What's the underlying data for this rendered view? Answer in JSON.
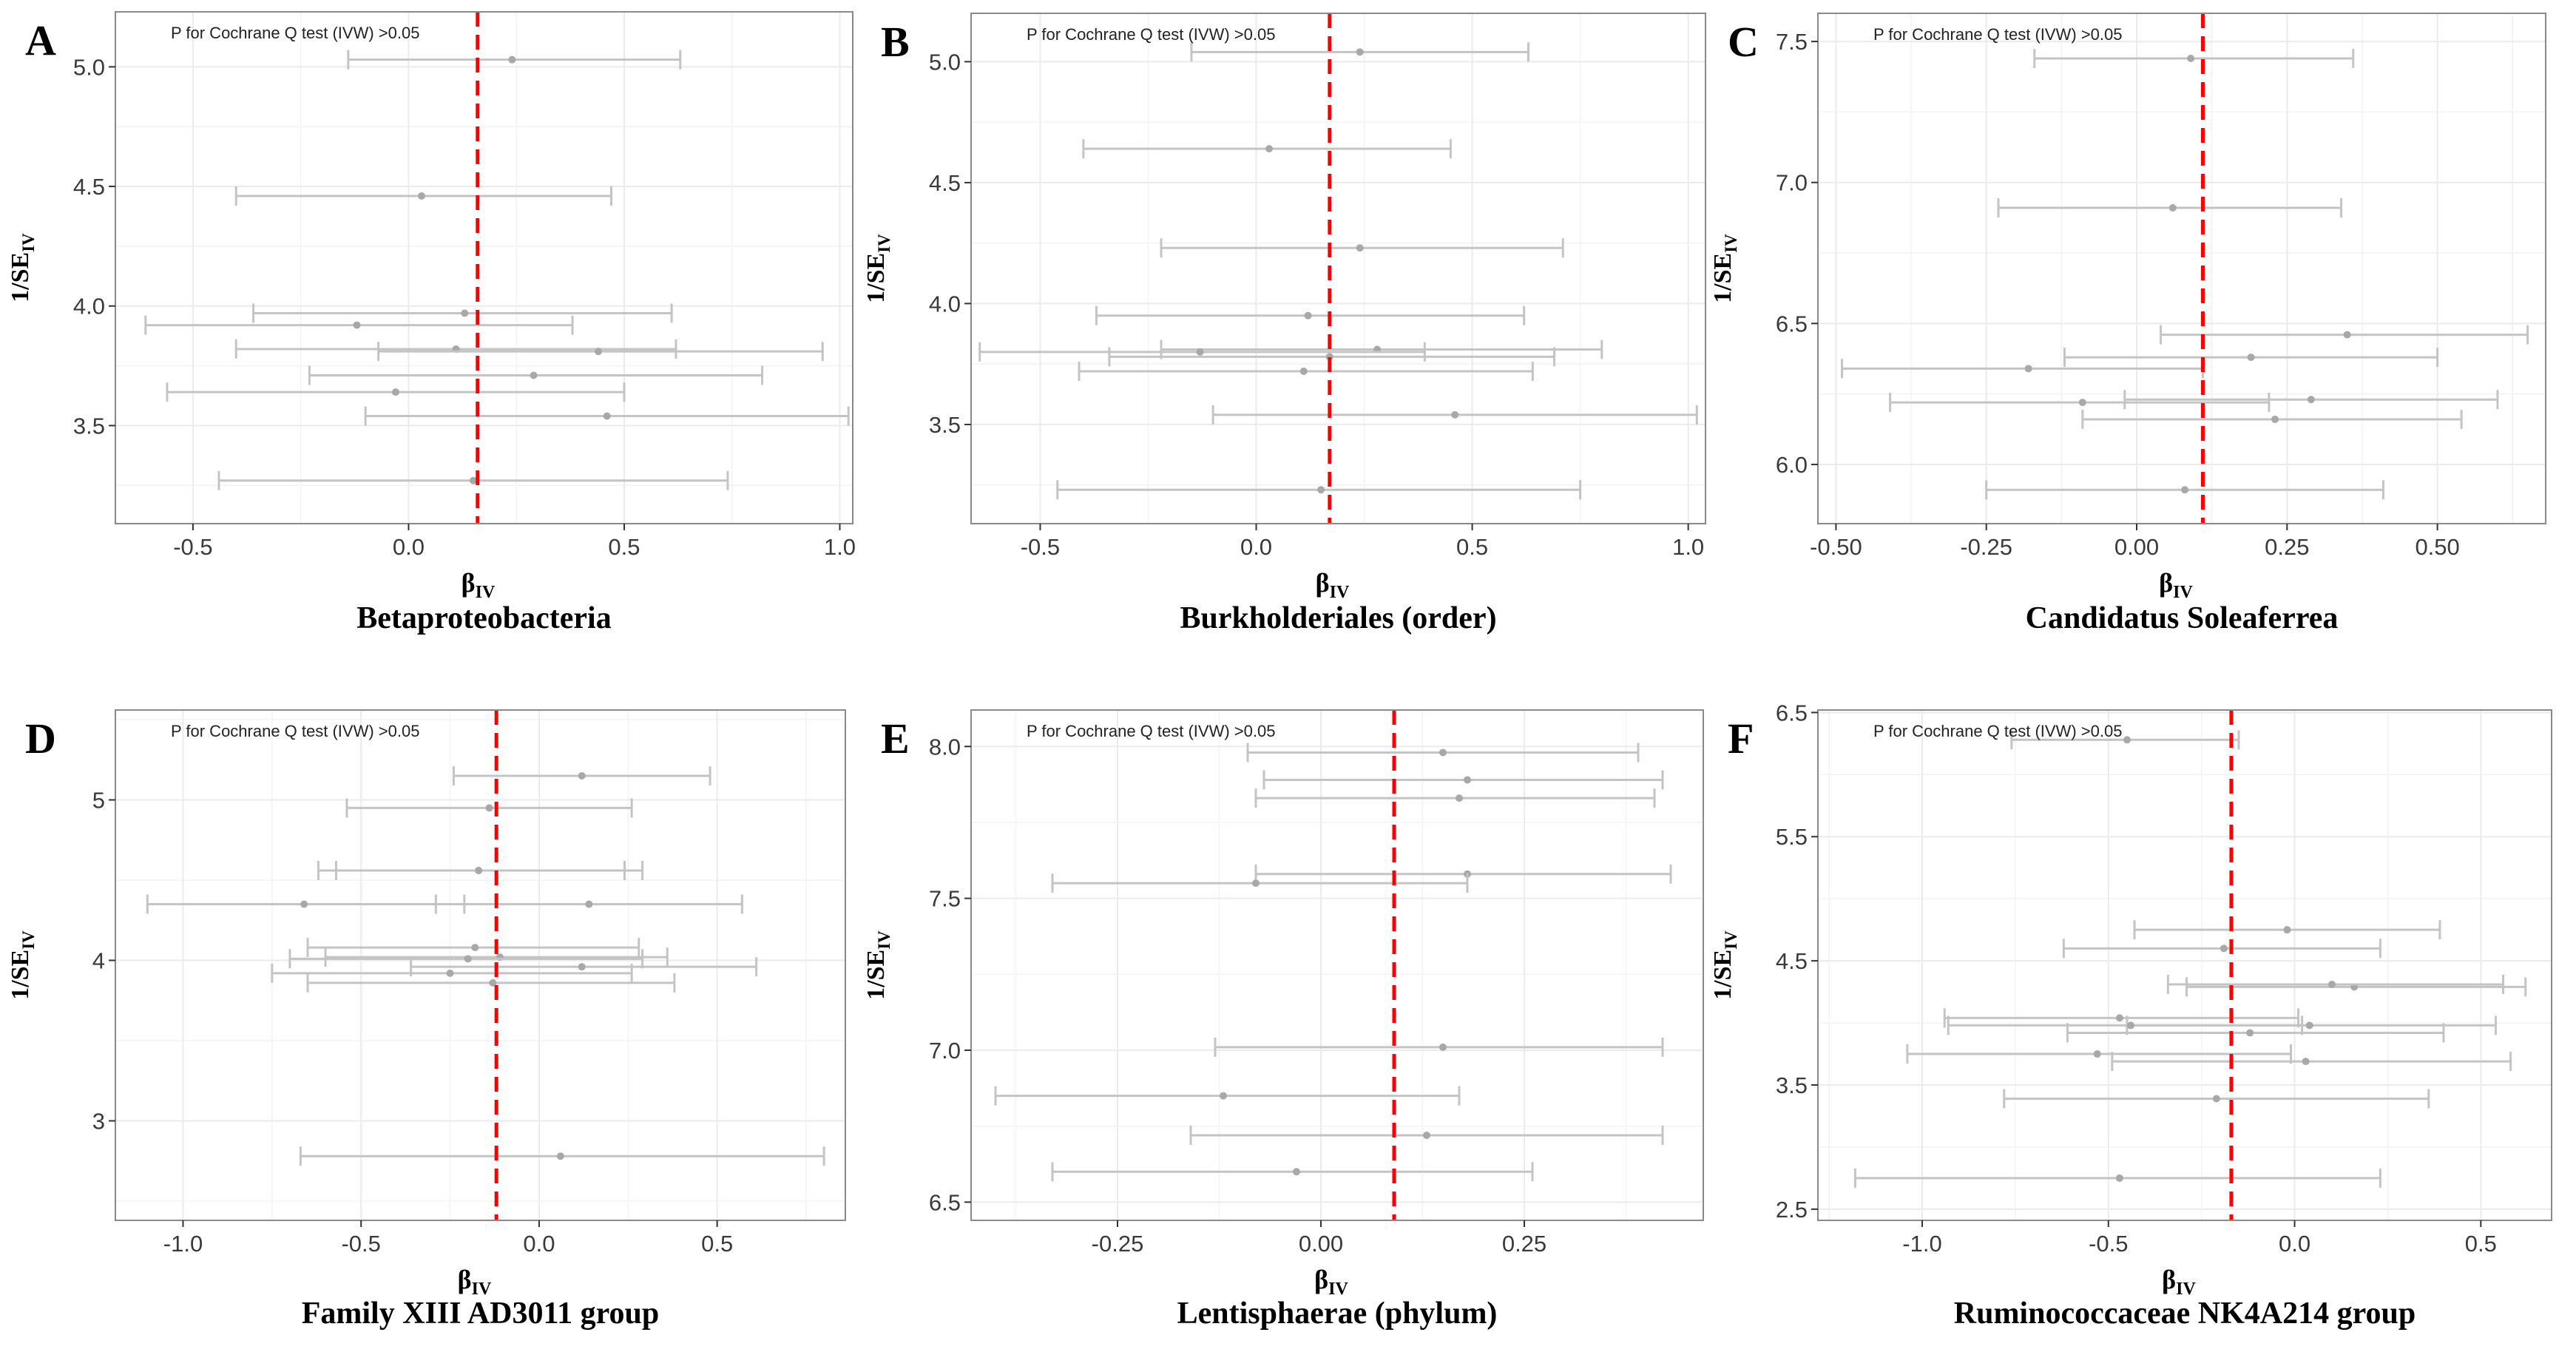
{
  "figure": {
    "colors": {
      "panel_bg": "#ffffff",
      "panel_border": "#8a8a8a",
      "grid": "#ebebeb",
      "errorbar": "#c4c4c4",
      "point": "#a8a8a8",
      "ref_line": "#ff0000",
      "axis_text": "#3a3a3a",
      "title_text": "#000000"
    }
  },
  "chart_data": [
    {
      "type": "scatter",
      "panel_letter": "A",
      "title": "Betaproteobacteria",
      "annotation": "P for Cochrane Q test (IVW) >0.05",
      "xlabel": "β",
      "xlabel_sub": "IV",
      "ylabel": "1/SE",
      "ylabel_sub": "IV",
      "xlim": [
        -0.68,
        1.03
      ],
      "ylim": [
        3.09,
        5.23
      ],
      "xticks": [
        -0.5,
        0.0,
        0.5,
        1.0
      ],
      "xtick_labels": [
        "-0.5",
        "0.0",
        "0.5",
        "1.0"
      ],
      "yticks": [
        3.5,
        4.0,
        4.5,
        5.0
      ],
      "ytick_labels": [
        "3.5",
        "4.0",
        "4.5",
        "5.0"
      ],
      "ref_x": 0.16,
      "points": [
        {
          "beta": 0.24,
          "lo": -0.14,
          "hi": 0.63,
          "y": 5.03
        },
        {
          "beta": 0.03,
          "lo": -0.4,
          "hi": 0.47,
          "y": 4.46
        },
        {
          "beta": 0.13,
          "lo": -0.36,
          "hi": 0.61,
          "y": 3.97
        },
        {
          "beta": -0.12,
          "lo": -0.61,
          "hi": 0.38,
          "y": 3.92
        },
        {
          "beta": 0.11,
          "lo": -0.4,
          "hi": 0.62,
          "y": 3.82
        },
        {
          "beta": 0.44,
          "lo": -0.07,
          "hi": 0.96,
          "y": 3.81
        },
        {
          "beta": 0.29,
          "lo": -0.23,
          "hi": 0.82,
          "y": 3.71
        },
        {
          "beta": -0.03,
          "lo": -0.56,
          "hi": 0.5,
          "y": 3.64
        },
        {
          "beta": 0.46,
          "lo": -0.1,
          "hi": 1.02,
          "y": 3.54
        },
        {
          "beta": 0.15,
          "lo": -0.44,
          "hi": 0.74,
          "y": 3.27
        }
      ]
    },
    {
      "type": "scatter",
      "panel_letter": "B",
      "title": "Burkholderiales (order)",
      "annotation": "P for Cochrane Q test (IVW) >0.05",
      "xlabel": "β",
      "xlabel_sub": "IV",
      "ylabel": "1/SE",
      "ylabel_sub": "IV",
      "xlim": [
        -0.66,
        1.04
      ],
      "ylim": [
        3.09,
        5.2
      ],
      "xticks": [
        -0.5,
        0.0,
        0.5,
        1.0
      ],
      "xtick_labels": [
        "-0.5",
        "0.0",
        "0.5",
        "1.0"
      ],
      "yticks": [
        3.5,
        4.0,
        4.5,
        5.0
      ],
      "ytick_labels": [
        "3.5",
        "4.0",
        "4.5",
        "5.0"
      ],
      "ref_x": 0.17,
      "points": [
        {
          "beta": 0.24,
          "lo": -0.15,
          "hi": 0.63,
          "y": 5.04
        },
        {
          "beta": 0.03,
          "lo": -0.4,
          "hi": 0.45,
          "y": 4.64
        },
        {
          "beta": 0.24,
          "lo": -0.22,
          "hi": 0.71,
          "y": 4.23
        },
        {
          "beta": 0.12,
          "lo": -0.37,
          "hi": 0.62,
          "y": 3.95
        },
        {
          "beta": 0.28,
          "lo": -0.22,
          "hi": 0.8,
          "y": 3.81
        },
        {
          "beta": -0.13,
          "lo": -0.64,
          "hi": 0.39,
          "y": 3.8
        },
        {
          "beta": 0.17,
          "lo": -0.34,
          "hi": 0.69,
          "y": 3.78
        },
        {
          "beta": 0.11,
          "lo": -0.41,
          "hi": 0.64,
          "y": 3.72
        },
        {
          "beta": 0.46,
          "lo": -0.1,
          "hi": 1.02,
          "y": 3.54
        },
        {
          "beta": 0.15,
          "lo": -0.46,
          "hi": 0.75,
          "y": 3.23
        }
      ]
    },
    {
      "type": "scatter",
      "panel_letter": "C",
      "title": "Candidatus Soleaferrea",
      "annotation": "P for Cochrane Q test (IVW) >0.05",
      "xlabel": "β",
      "xlabel_sub": "IV",
      "ylabel": "1/SE",
      "ylabel_sub": "IV",
      "xlim": [
        -0.53,
        0.68
      ],
      "ylim": [
        5.79,
        7.6
      ],
      "xticks": [
        -0.5,
        -0.25,
        0.0,
        0.25,
        0.5
      ],
      "xtick_labels": [
        "-0.50",
        "-0.25",
        "0.00",
        "0.25",
        "0.50"
      ],
      "yticks": [
        6.0,
        6.5,
        7.0,
        7.5
      ],
      "ytick_labels": [
        "6.0",
        "6.5",
        "7.0",
        "7.5"
      ],
      "ref_x": 0.11,
      "points": [
        {
          "beta": 0.09,
          "lo": -0.17,
          "hi": 0.36,
          "y": 7.44
        },
        {
          "beta": 0.06,
          "lo": -0.23,
          "hi": 0.34,
          "y": 6.91
        },
        {
          "beta": 0.35,
          "lo": 0.04,
          "hi": 0.65,
          "y": 6.46
        },
        {
          "beta": 0.19,
          "lo": -0.12,
          "hi": 0.5,
          "y": 6.38
        },
        {
          "beta": -0.18,
          "lo": -0.49,
          "hi": 0.11,
          "y": 6.34
        },
        {
          "beta": 0.29,
          "lo": -0.02,
          "hi": 0.6,
          "y": 6.23
        },
        {
          "beta": -0.09,
          "lo": -0.41,
          "hi": 0.22,
          "y": 6.22
        },
        {
          "beta": 0.23,
          "lo": -0.09,
          "hi": 0.54,
          "y": 6.16
        },
        {
          "beta": 0.08,
          "lo": -0.25,
          "hi": 0.41,
          "y": 5.91
        }
      ]
    },
    {
      "type": "scatter",
      "panel_letter": "D",
      "title": "Family XIII AD3011 group",
      "annotation": "P for Cochrane Q test (IVW) >0.05",
      "xlabel": "β",
      "xlabel_sub": "IV",
      "ylabel": "1/SE",
      "ylabel_sub": "IV",
      "xlim": [
        -1.19,
        0.86
      ],
      "ylim": [
        2.38,
        5.56
      ],
      "xticks": [
        -1.0,
        -0.5,
        0.0,
        0.5
      ],
      "xtick_labels": [
        "-1.0",
        "-0.5",
        "0.0",
        "0.5"
      ],
      "yticks": [
        3,
        4,
        5
      ],
      "ytick_labels": [
        "3",
        "4",
        "5"
      ],
      "ref_x": -0.12,
      "points": [
        {
          "beta": 0.12,
          "lo": -0.24,
          "hi": 0.48,
          "y": 5.15
        },
        {
          "beta": -0.14,
          "lo": -0.54,
          "hi": 0.26,
          "y": 4.95
        },
        {
          "beta": -0.17,
          "lo": -0.57,
          "hi": 0.24,
          "y": 4.56
        },
        {
          "beta": -0.17,
          "lo": -0.62,
          "hi": 0.29,
          "y": 4.56
        },
        {
          "beta": 0.14,
          "lo": -0.29,
          "hi": 0.57,
          "y": 4.35
        },
        {
          "beta": -0.66,
          "lo": -1.1,
          "hi": -0.21,
          "y": 4.35
        },
        {
          "beta": -0.18,
          "lo": -0.65,
          "hi": 0.28,
          "y": 4.08
        },
        {
          "beta": -0.11,
          "lo": -0.6,
          "hi": 0.36,
          "y": 4.02
        },
        {
          "beta": -0.2,
          "lo": -0.7,
          "hi": 0.29,
          "y": 4.01
        },
        {
          "beta": 0.12,
          "lo": -0.36,
          "hi": 0.61,
          "y": 3.96
        },
        {
          "beta": -0.25,
          "lo": -0.75,
          "hi": 0.26,
          "y": 3.92
        },
        {
          "beta": -0.13,
          "lo": -0.65,
          "hi": 0.38,
          "y": 3.86
        },
        {
          "beta": 0.06,
          "lo": -0.67,
          "hi": 0.8,
          "y": 2.78
        }
      ]
    },
    {
      "type": "scatter",
      "panel_letter": "E",
      "title": "Lentisphaerae (phylum)",
      "annotation": "P for Cochrane Q test (IVW) >0.05",
      "xlabel": "β",
      "xlabel_sub": "IV",
      "ylabel": "1/SE",
      "ylabel_sub": "IV",
      "xlim": [
        -0.43,
        0.47
      ],
      "ylim": [
        6.44,
        8.12
      ],
      "xticks": [
        -0.25,
        0.0,
        0.25
      ],
      "xtick_labels": [
        "-0.25",
        "0.00",
        "0.25"
      ],
      "yticks": [
        6.5,
        7.0,
        7.5,
        8.0
      ],
      "ytick_labels": [
        "6.5",
        "7.0",
        "7.5",
        "8.0"
      ],
      "ref_x": 0.09,
      "points": [
        {
          "beta": 0.15,
          "lo": -0.09,
          "hi": 0.39,
          "y": 7.98
        },
        {
          "beta": 0.18,
          "lo": -0.07,
          "hi": 0.42,
          "y": 7.89
        },
        {
          "beta": 0.17,
          "lo": -0.08,
          "hi": 0.41,
          "y": 7.83
        },
        {
          "beta": 0.18,
          "lo": -0.08,
          "hi": 0.43,
          "y": 7.58
        },
        {
          "beta": -0.08,
          "lo": -0.33,
          "hi": 0.18,
          "y": 7.55
        },
        {
          "beta": 0.15,
          "lo": -0.13,
          "hi": 0.42,
          "y": 7.01
        },
        {
          "beta": -0.12,
          "lo": -0.4,
          "hi": 0.17,
          "y": 6.85
        },
        {
          "beta": 0.13,
          "lo": -0.16,
          "hi": 0.42,
          "y": 6.72
        },
        {
          "beta": -0.03,
          "lo": -0.33,
          "hi": 0.26,
          "y": 6.6
        }
      ]
    },
    {
      "type": "scatter",
      "panel_letter": "F",
      "title": "Ruminococcaceae NK4A214 group",
      "annotation": "P for Cochrane Q test (IVW) >0.05",
      "xlabel": "β",
      "xlabel_sub": "IV",
      "ylabel": "1/SE",
      "ylabel_sub": "IV",
      "xlim": [
        -1.28,
        0.69
      ],
      "ylim": [
        2.41,
        6.52
      ],
      "xticks": [
        -1.0,
        -0.5,
        0.0,
        0.5
      ],
      "xtick_labels": [
        "-1.0",
        "-0.5",
        "0.0",
        "0.5"
      ],
      "yticks": [
        2.5,
        3.5,
        4.5,
        5.5,
        6.5
      ],
      "ytick_labels": [
        "2.5",
        "3.5",
        "4.5",
        "5.5",
        "6.5"
      ],
      "ref_x": -0.17,
      "points": [
        {
          "beta": -0.45,
          "lo": -0.76,
          "hi": -0.15,
          "y": 6.28
        },
        {
          "beta": -0.02,
          "lo": -0.43,
          "hi": 0.39,
          "y": 4.75
        },
        {
          "beta": -0.19,
          "lo": -0.62,
          "hi": 0.23,
          "y": 4.6
        },
        {
          "beta": 0.16,
          "lo": -0.29,
          "hi": 0.62,
          "y": 4.29
        },
        {
          "beta": 0.1,
          "lo": -0.34,
          "hi": 0.56,
          "y": 4.31
        },
        {
          "beta": -0.47,
          "lo": -0.94,
          "hi": 0.01,
          "y": 4.04
        },
        {
          "beta": 0.04,
          "lo": -0.45,
          "hi": 0.54,
          "y": 3.98
        },
        {
          "beta": -0.44,
          "lo": -0.93,
          "hi": 0.02,
          "y": 3.98
        },
        {
          "beta": -0.12,
          "lo": -0.61,
          "hi": 0.4,
          "y": 3.92
        },
        {
          "beta": -0.53,
          "lo": -1.04,
          "hi": -0.01,
          "y": 3.75
        },
        {
          "beta": 0.03,
          "lo": -0.49,
          "hi": 0.58,
          "y": 3.69
        },
        {
          "beta": -0.21,
          "lo": -0.78,
          "hi": 0.36,
          "y": 3.39
        },
        {
          "beta": -0.47,
          "lo": -1.18,
          "hi": 0.23,
          "y": 2.75
        }
      ]
    }
  ]
}
